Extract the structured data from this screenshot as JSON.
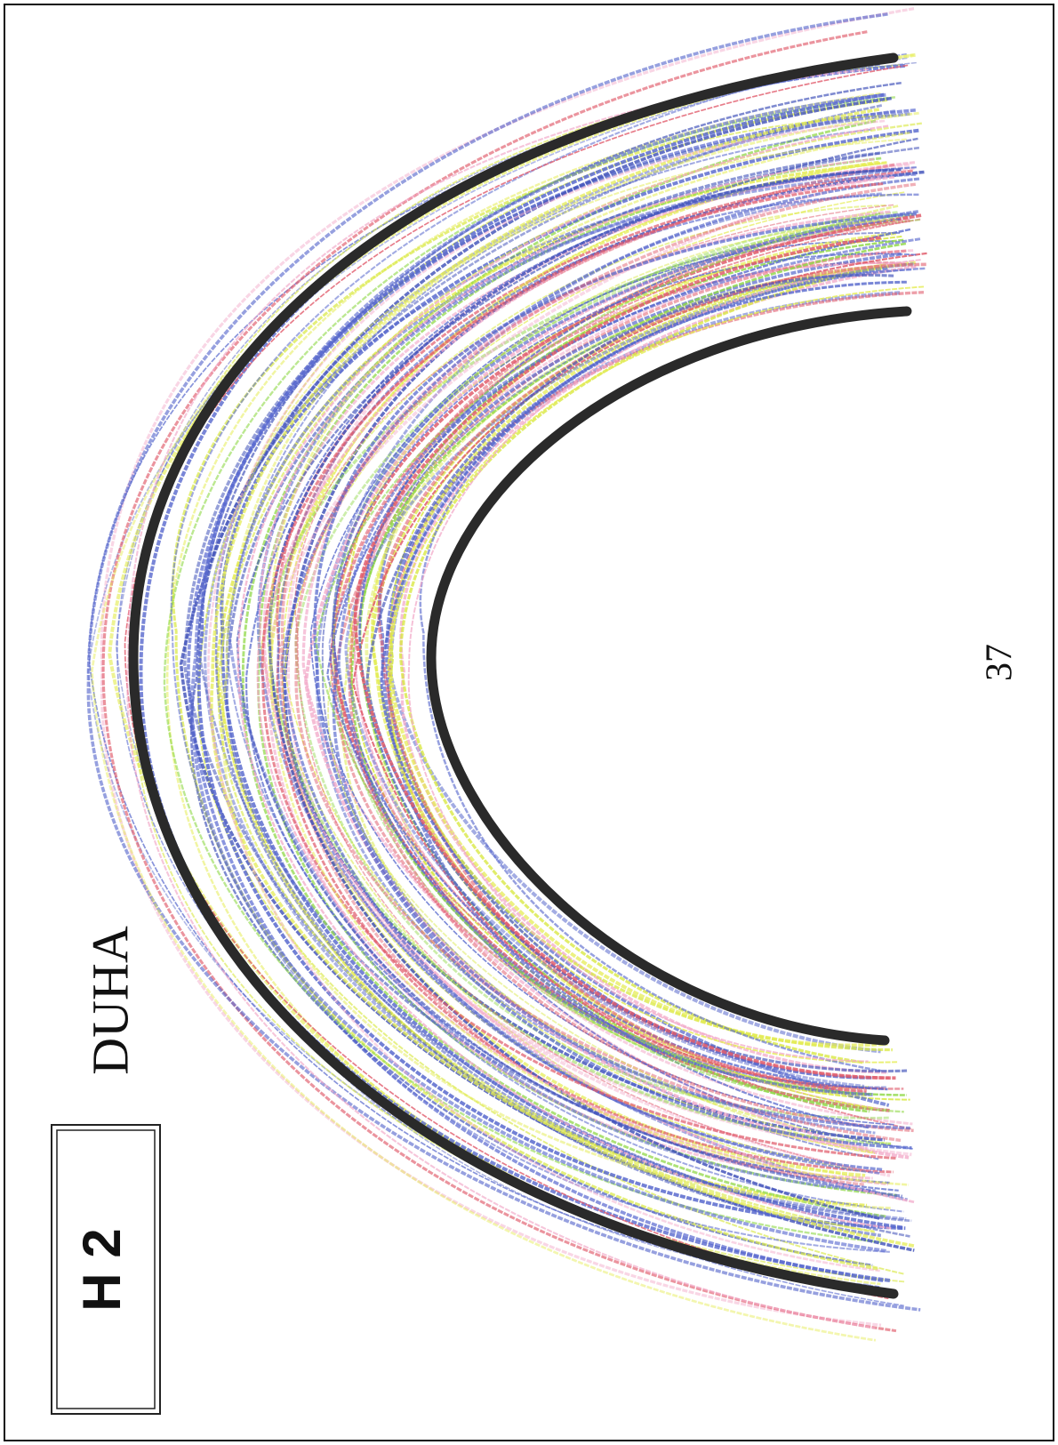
{
  "label": "H 2",
  "title": "DUHA",
  "page_number": "37"
}
